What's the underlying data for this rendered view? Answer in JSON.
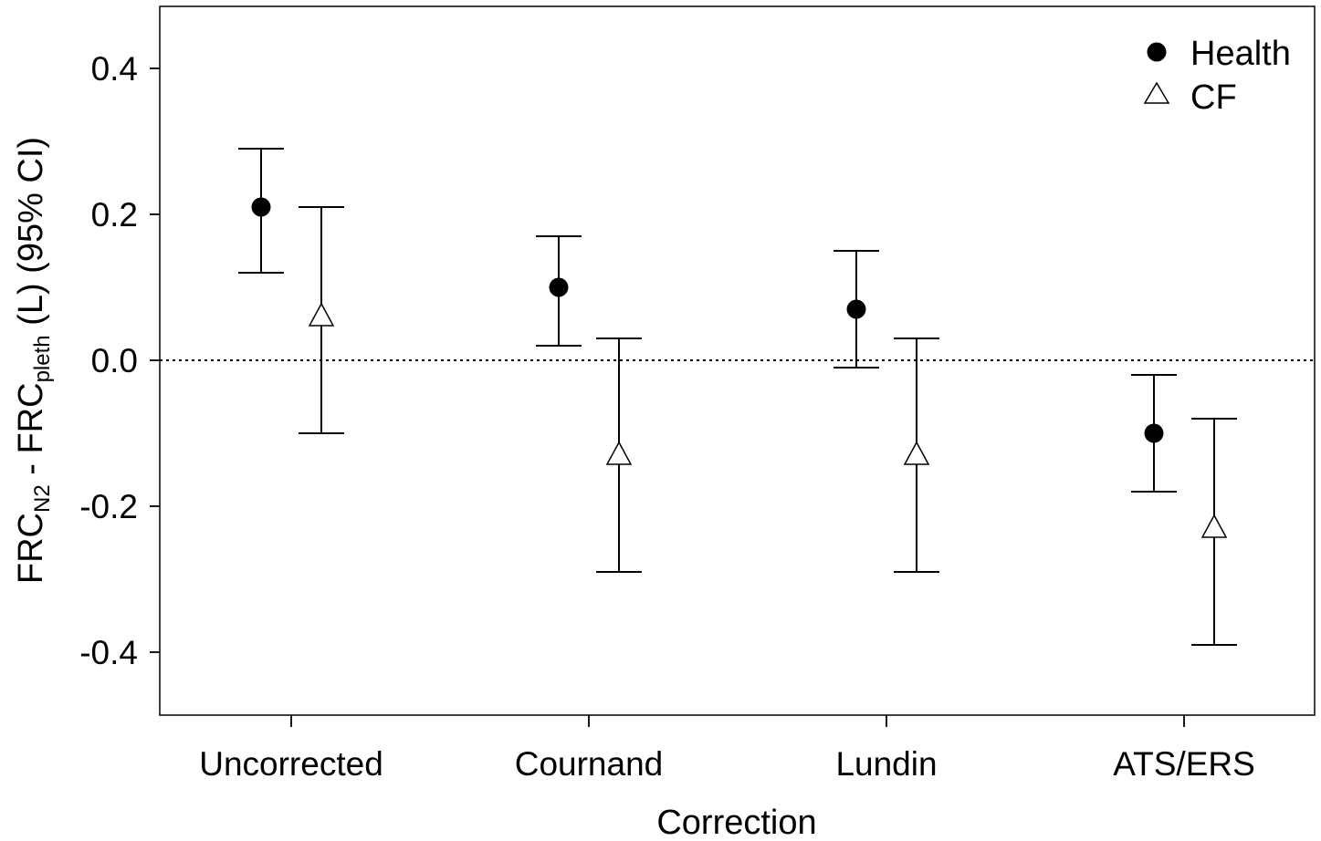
{
  "chart_data": {
    "type": "scatter",
    "subtype": "point-with-95ci-errorbars",
    "xlabel": "Correction",
    "ylabel": {
      "parts": [
        {
          "text": "FRC",
          "sub": false
        },
        {
          "text": "N2",
          "sub": true
        },
        {
          "text": " - FRC",
          "sub": false
        },
        {
          "text": "pleth",
          "sub": true
        },
        {
          "text": " (L) (95% CI)",
          "sub": false
        }
      ]
    },
    "categories": [
      "Uncorrected",
      "Cournand",
      "Lundin",
      "ATS/ERS"
    ],
    "ylim": [
      -0.485,
      0.485
    ],
    "yticks": [
      -0.4,
      -0.2,
      0.0,
      0.2,
      0.4
    ],
    "ytick_labels": [
      "-0.4",
      "-0.2",
      "0.0",
      "0.2",
      "0.4"
    ],
    "reference_line": {
      "y": 0.0,
      "style": "dotted"
    },
    "grid": false,
    "legend_position": "top-right",
    "series": [
      {
        "name": "Health",
        "marker": "filled-circle",
        "values": [
          0.21,
          0.1,
          0.07,
          -0.1
        ],
        "ci_lower": [
          0.12,
          0.02,
          -0.01,
          -0.18
        ],
        "ci_upper": [
          0.29,
          0.17,
          0.15,
          -0.02
        ]
      },
      {
        "name": "CF",
        "marker": "open-triangle",
        "values": [
          0.06,
          -0.13,
          -0.13,
          -0.23
        ],
        "ci_lower": [
          -0.1,
          -0.29,
          -0.29,
          -0.39
        ],
        "ci_upper": [
          0.21,
          0.03,
          0.03,
          -0.08
        ]
      }
    ]
  }
}
